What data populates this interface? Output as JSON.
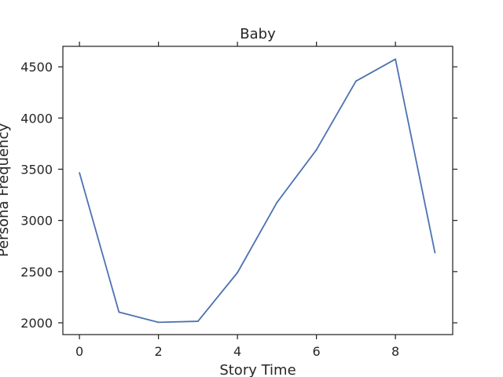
{
  "chart_data": {
    "type": "line",
    "title": "Baby",
    "xlabel": "Story Time",
    "ylabel": "Persona Frequency",
    "x": [
      0,
      1,
      2,
      3,
      4,
      5,
      6,
      7,
      8,
      9
    ],
    "series": [
      {
        "name": "",
        "values": [
          3465,
          2105,
          2005,
          2015,
          2490,
          3175,
          3690,
          4360,
          4575,
          2685
        ]
      }
    ],
    "xticks": [
      0,
      2,
      4,
      6,
      8
    ],
    "yticks": [
      2000,
      2500,
      3000,
      3500,
      4000,
      4500
    ],
    "xlim": [
      -0.42,
      9.45
    ],
    "ylim": [
      1885,
      4700
    ],
    "grid": false,
    "line_color": "#4c72b0"
  }
}
